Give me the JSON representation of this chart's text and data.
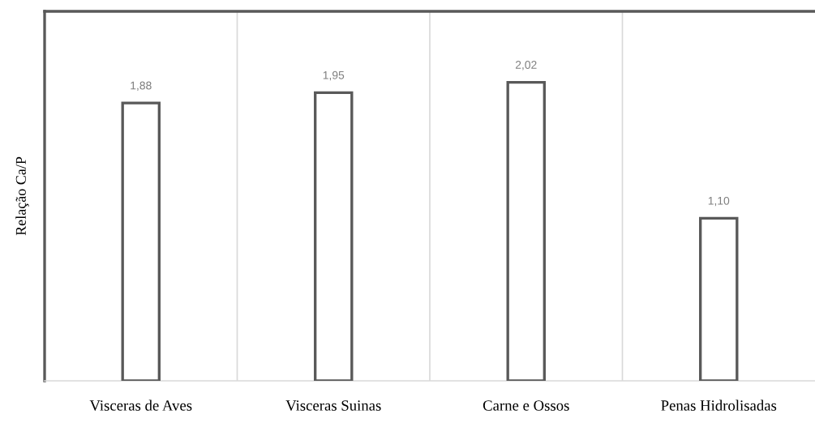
{
  "chart_data": {
    "type": "bar",
    "ylabel": "Relação Ca/P",
    "categories": [
      "Visceras de Aves",
      "Visceras Suinas",
      "Carne e Ossos",
      "Penas Hidrolisadas"
    ],
    "values": [
      1.88,
      1.95,
      2.02,
      1.1
    ],
    "color": "#ffffff",
    "value_labels": [
      "1,88",
      "1,95",
      "2,02",
      "1,10"
    ],
    "ylim": [
      0,
      2.5
    ],
    "grid": "x",
    "tick_labels": "x"
  }
}
